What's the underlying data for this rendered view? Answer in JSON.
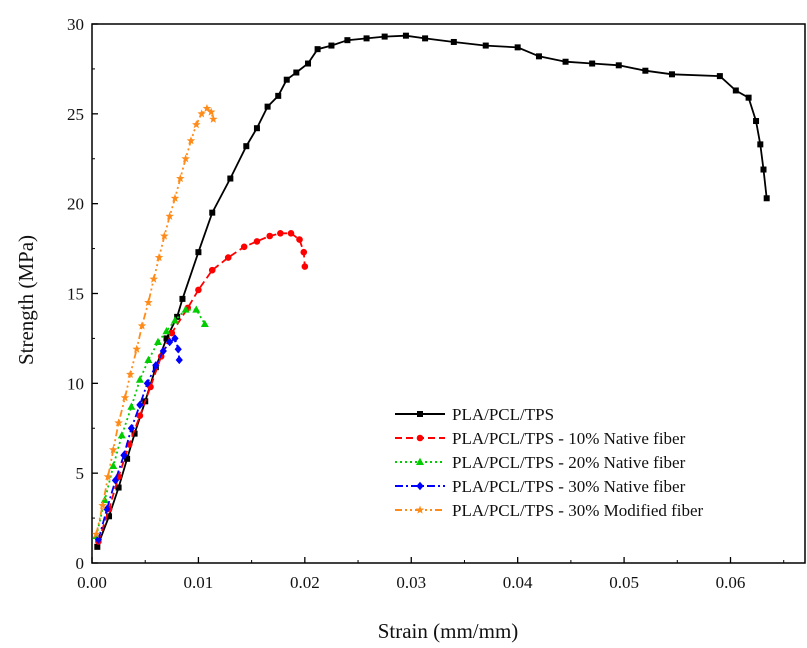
{
  "chart_data": {
    "type": "line",
    "title": "",
    "xlabel": "Strain (mm/mm)",
    "ylabel": "Strength (MPa)",
    "xlim": [
      0,
      0.067
    ],
    "ylim": [
      0,
      30
    ],
    "x_ticks": [
      "0.00",
      "0.01",
      "0.02",
      "0.03",
      "0.04",
      "0.05",
      "0.06"
    ],
    "x_tick_values": [
      0,
      0.01,
      0.02,
      0.03,
      0.04,
      0.05,
      0.06
    ],
    "y_ticks": [
      "0",
      "5",
      "10",
      "15",
      "20",
      "25",
      "30"
    ],
    "y_tick_values": [
      0,
      5,
      10,
      15,
      20,
      25,
      30
    ],
    "grid": false,
    "legend_position": "bottom-right",
    "series": [
      {
        "name": "PLA/PCL/TPS",
        "color": "#000000",
        "line_style": "solid",
        "marker": "square",
        "points": [
          [
            0.0005,
            0.9
          ],
          [
            0.0016,
            2.6
          ],
          [
            0.0025,
            4.2
          ],
          [
            0.0033,
            5.8
          ],
          [
            0.004,
            7.2
          ],
          [
            0.005,
            9.0
          ],
          [
            0.006,
            10.9
          ],
          [
            0.007,
            12.5
          ],
          [
            0.008,
            13.7
          ],
          [
            0.0085,
            14.7
          ],
          [
            0.01,
            17.3
          ],
          [
            0.0113,
            19.5
          ],
          [
            0.013,
            21.4
          ],
          [
            0.0145,
            23.2
          ],
          [
            0.0155,
            24.2
          ],
          [
            0.0165,
            25.4
          ],
          [
            0.0175,
            26.0
          ],
          [
            0.0183,
            26.9
          ],
          [
            0.0192,
            27.3
          ],
          [
            0.0203,
            27.8
          ],
          [
            0.0212,
            28.6
          ],
          [
            0.0225,
            28.8
          ],
          [
            0.024,
            29.1
          ],
          [
            0.0258,
            29.2
          ],
          [
            0.0275,
            29.3
          ],
          [
            0.0295,
            29.35
          ],
          [
            0.0313,
            29.2
          ],
          [
            0.034,
            29.0
          ],
          [
            0.037,
            28.8
          ],
          [
            0.04,
            28.7
          ],
          [
            0.042,
            28.2
          ],
          [
            0.0445,
            27.9
          ],
          [
            0.047,
            27.8
          ],
          [
            0.0495,
            27.7
          ],
          [
            0.052,
            27.4
          ],
          [
            0.0545,
            27.2
          ],
          [
            0.059,
            27.1
          ],
          [
            0.0605,
            26.3
          ],
          [
            0.0617,
            25.9
          ],
          [
            0.0624,
            24.6
          ],
          [
            0.0628,
            23.3
          ],
          [
            0.0631,
            21.9
          ],
          [
            0.0634,
            20.3
          ]
        ]
      },
      {
        "name": "PLA/PCL/TPS - 10% Native fiber",
        "color": "#ff0000",
        "line_style": "dashed",
        "marker": "circle",
        "points": [
          [
            0.0006,
            1.2
          ],
          [
            0.0016,
            3.0
          ],
          [
            0.0025,
            4.8
          ],
          [
            0.0035,
            6.6
          ],
          [
            0.0045,
            8.2
          ],
          [
            0.0055,
            9.8
          ],
          [
            0.0065,
            11.5
          ],
          [
            0.0075,
            12.8
          ],
          [
            0.009,
            14.2
          ],
          [
            0.01,
            15.2
          ],
          [
            0.0113,
            16.3
          ],
          [
            0.0128,
            17.0
          ],
          [
            0.0143,
            17.6
          ],
          [
            0.0155,
            17.9
          ],
          [
            0.0167,
            18.2
          ],
          [
            0.0177,
            18.35
          ],
          [
            0.0187,
            18.35
          ],
          [
            0.0195,
            18.0
          ],
          [
            0.0199,
            17.3
          ],
          [
            0.02,
            16.5
          ]
        ]
      },
      {
        "name": "PLA/PCL/TPS - 20% Native fiber",
        "color": "#00cc00",
        "line_style": "dotted",
        "marker": "triangle",
        "points": [
          [
            0.0004,
            1.5
          ],
          [
            0.0012,
            3.5
          ],
          [
            0.002,
            5.4
          ],
          [
            0.0028,
            7.1
          ],
          [
            0.0037,
            8.7
          ],
          [
            0.0045,
            10.2
          ],
          [
            0.0053,
            11.3
          ],
          [
            0.0062,
            12.3
          ],
          [
            0.007,
            12.9
          ],
          [
            0.0078,
            13.5
          ],
          [
            0.0088,
            14.1
          ],
          [
            0.0098,
            14.1
          ],
          [
            0.0106,
            13.3
          ]
        ]
      },
      {
        "name": "PLA/PCL/TPS - 30% Native fiber",
        "color": "#0000ff",
        "line_style": "dashdot",
        "marker": "diamond",
        "points": [
          [
            0.0006,
            1.3
          ],
          [
            0.0014,
            3.0
          ],
          [
            0.0022,
            4.6
          ],
          [
            0.003,
            6.0
          ],
          [
            0.0037,
            7.5
          ],
          [
            0.0045,
            8.8
          ],
          [
            0.0052,
            10.0
          ],
          [
            0.006,
            11.0
          ],
          [
            0.0067,
            11.8
          ],
          [
            0.0073,
            12.3
          ],
          [
            0.0078,
            12.5
          ],
          [
            0.0081,
            11.9
          ],
          [
            0.0082,
            11.3
          ]
        ]
      },
      {
        "name": "PLA/PCL/TPS - 30% Modified fiber",
        "color": "#ff8c1a",
        "line_style": "dashdotdot",
        "marker": "star",
        "points": [
          [
            0.0004,
            1.6
          ],
          [
            0.001,
            3.2
          ],
          [
            0.0015,
            4.8
          ],
          [
            0.002,
            6.3
          ],
          [
            0.0025,
            7.8
          ],
          [
            0.0031,
            9.2
          ],
          [
            0.0036,
            10.5
          ],
          [
            0.0042,
            11.9
          ],
          [
            0.0047,
            13.2
          ],
          [
            0.0053,
            14.5
          ],
          [
            0.0058,
            15.8
          ],
          [
            0.0063,
            17.0
          ],
          [
            0.0068,
            18.2
          ],
          [
            0.0073,
            19.3
          ],
          [
            0.0078,
            20.3
          ],
          [
            0.0083,
            21.4
          ],
          [
            0.0088,
            22.5
          ],
          [
            0.0093,
            23.5
          ],
          [
            0.0098,
            24.4
          ],
          [
            0.0103,
            25.0
          ],
          [
            0.0108,
            25.3
          ],
          [
            0.0112,
            25.1
          ],
          [
            0.0114,
            24.7
          ]
        ]
      }
    ]
  }
}
